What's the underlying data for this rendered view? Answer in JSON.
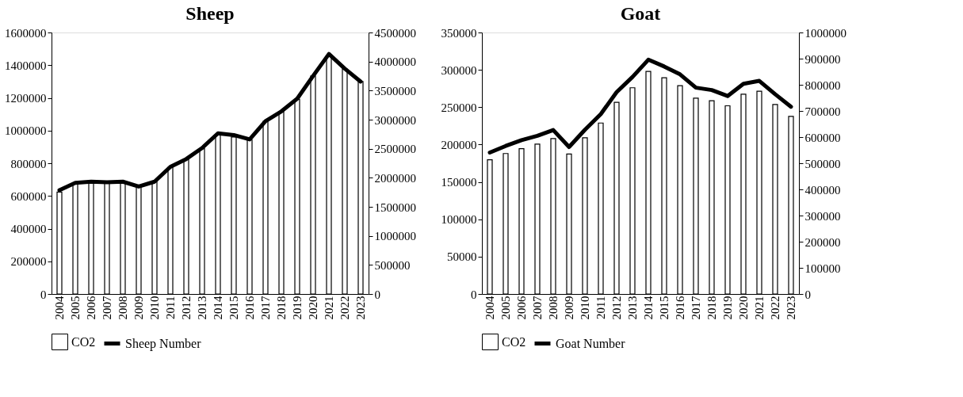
{
  "chart_data": [
    {
      "type": "bar",
      "title": "Sheep",
      "categories": [
        "2004",
        "2005",
        "2006",
        "2007",
        "2008",
        "2009",
        "2010",
        "2011",
        "2012",
        "2013",
        "2014",
        "2015",
        "2016",
        "2017",
        "2018",
        "2019",
        "2020",
        "2021",
        "2022",
        "2023"
      ],
      "series": [
        {
          "name": "CO2",
          "color": "#ffffff",
          "values": [
            624000,
            677000,
            684000,
            681000,
            684000,
            654000,
            687000,
            774000,
            822000,
            889000,
            975000,
            961000,
            943000,
            1056000,
            1113000,
            1191000,
            1334000,
            1461000,
            1376000,
            1300000
          ]
        },
        {
          "name": "Sheep Number",
          "type": "line",
          "axis": "y2",
          "color": "#000000",
          "values": [
            1786000,
            1912000,
            1933000,
            1924000,
            1933000,
            1849000,
            1933000,
            2189000,
            2323000,
            2513000,
            2765000,
            2735000,
            2660000,
            2975000,
            3143000,
            3361000,
            3752000,
            4130000,
            3878000,
            3655000
          ]
        }
      ],
      "ylim": [
        0,
        1600000
      ],
      "yticks": [
        0,
        200000,
        400000,
        600000,
        800000,
        1000000,
        1200000,
        1400000,
        1600000
      ],
      "y2lim": [
        0,
        4500000
      ],
      "y2ticks": [
        0,
        500000,
        1000000,
        1500000,
        2000000,
        2500000,
        3000000,
        3500000,
        4000000,
        4500000
      ],
      "legend": "bottom"
    },
    {
      "type": "bar",
      "title": "Goat",
      "categories": [
        "2004",
        "2005",
        "2006",
        "2007",
        "2008",
        "2009",
        "2010",
        "2011",
        "2012",
        "2013",
        "2014",
        "2015",
        "2016",
        "2017",
        "2018",
        "2019",
        "2020",
        "2021",
        "2022",
        "2023"
      ],
      "series": [
        {
          "name": "CO2",
          "color": "#ffffff",
          "values": [
            179600,
            188000,
            194500,
            200500,
            208000,
            187400,
            209000,
            228800,
            256500,
            276000,
            298000,
            289400,
            278800,
            262100,
            258600,
            251900,
            267500,
            271300,
            253600,
            237700
          ]
        },
        {
          "name": "Goat Number",
          "type": "line",
          "axis": "y2",
          "color": "#000000",
          "values": [
            541000,
            566000,
            588000,
            605000,
            627000,
            562000,
            628000,
            688000,
            772000,
            830000,
            896000,
            870000,
            840000,
            789000,
            780000,
            757000,
            804000,
            815000,
            764000,
            716000
          ]
        }
      ],
      "ylim": [
        0,
        350000
      ],
      "yticks": [
        0,
        50000,
        100000,
        150000,
        200000,
        250000,
        300000,
        350000
      ],
      "y2lim": [
        0,
        1000000
      ],
      "y2ticks": [
        0,
        100000,
        200000,
        300000,
        400000,
        500000,
        600000,
        700000,
        800000,
        900000,
        1000000
      ],
      "legend": "bottom"
    }
  ]
}
